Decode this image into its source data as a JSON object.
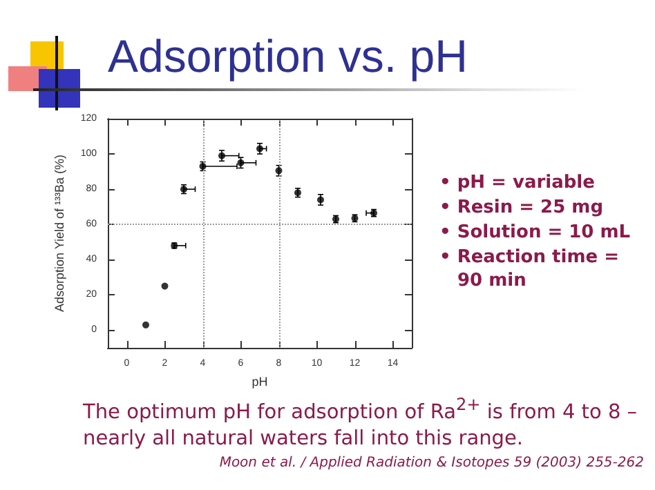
{
  "chart_data": {
    "type": "scatter",
    "title": "Adsorption vs. pH",
    "xlabel": "pH",
    "ylabel": "Adsorption Yield of ¹³³Ba (%)",
    "x": [
      1,
      2,
      2.5,
      3,
      4,
      5,
      6,
      7,
      8,
      9,
      10.2,
      11,
      12,
      13
    ],
    "values": [
      3,
      25,
      48,
      80,
      93,
      99,
      95,
      103,
      90.5,
      78,
      74,
      63,
      63.5,
      66.5
    ],
    "errors": [
      null,
      null,
      1.5,
      2.5,
      2.5,
      3,
      3,
      3,
      3,
      2.5,
      3,
      2,
      2,
      2
    ],
    "xerrors": [
      null,
      null,
      [
        2.5,
        3.1
      ],
      [
        3,
        3.6
      ],
      [
        4,
        5.8
      ],
      [
        5,
        5.9
      ],
      [
        6,
        6.8
      ],
      [
        7,
        7.35
      ],
      null,
      null,
      null,
      null,
      null,
      [
        12.6,
        13
      ]
    ],
    "color": "#000000",
    "marker": "circle",
    "xlim": [
      -1,
      15
    ],
    "xticks": [
      0,
      2,
      4,
      6,
      8,
      10,
      12,
      14
    ],
    "ylim": [
      -10,
      120
    ],
    "yticks": [
      0,
      20,
      40,
      60,
      80,
      100,
      120
    ],
    "grid": false,
    "ref_lines": [
      {
        "axis": "x",
        "value": 4,
        "color": "#999999",
        "line_style": "dotted"
      },
      {
        "axis": "x",
        "value": 8,
        "color": "#999999",
        "line_style": "dotted"
      },
      {
        "axis": "y",
        "value": 60,
        "color": "#999999",
        "line_style": "dotted"
      }
    ],
    "annotations": [
      "• pH = variable",
      "• Resin = 25 mg",
      "• Solution = 10 mL",
      "• Reaction time = 90 min",
      "The optimum pH for adsorption of Ra$^{2+}$ is from 4 to 8  – nearly all natural waters fall into this range.",
      "Moon et al. / Applied Radiation & Isotopes 59 (2003) 255-262"
    ]
  }
}
